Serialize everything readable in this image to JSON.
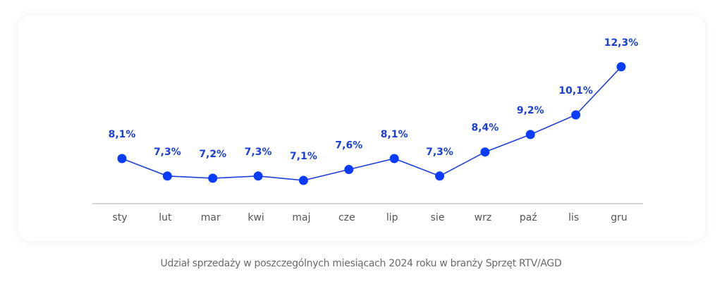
{
  "chart_data": {
    "type": "line",
    "categories": [
      "sty",
      "lut",
      "mar",
      "kwi",
      "maj",
      "cze",
      "lip",
      "sie",
      "wrz",
      "paź",
      "lis",
      "gru"
    ],
    "values": [
      8.1,
      7.3,
      7.2,
      7.3,
      7.1,
      7.6,
      8.1,
      7.3,
      8.4,
      9.2,
      10.1,
      12.3
    ],
    "data_labels": [
      "8,1%",
      "7,3%",
      "7,2%",
      "7,3%",
      "7,1%",
      "7,6%",
      "8,1%",
      "7,3%",
      "8,4%",
      "9,2%",
      "10,1%",
      "12,3%"
    ],
    "title": "",
    "caption": "Udział sprzedaży w poszczególnych miesiącach 2024 roku w branży Sprzęt RTV/AGD",
    "xlabel": "",
    "ylabel": "",
    "grid": false,
    "legend": "none",
    "colors": {
      "line": "#1f3fd8",
      "point": "#0a3cff",
      "label": "#1a3fd6",
      "axis": "#c8c8c8",
      "tick": "#555555"
    }
  }
}
